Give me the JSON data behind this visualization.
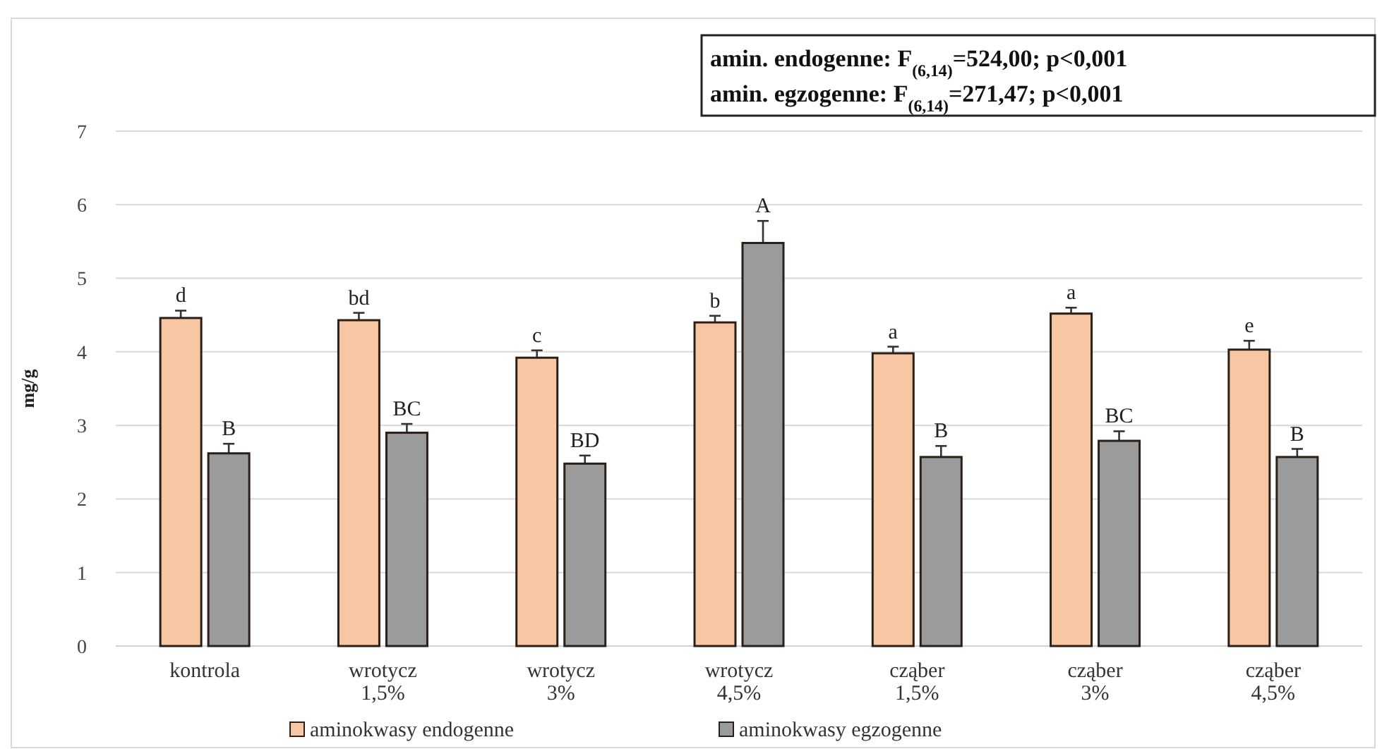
{
  "chart_data": {
    "type": "bar",
    "ylabel": "mg/g",
    "categories": [
      "kontrola",
      "wrotycz 1,5%",
      "wrotycz 3%",
      "wrotycz 4,5%",
      "cząber 1,5%",
      "cząber 3%",
      "cząber 4,5%"
    ],
    "series": [
      {
        "name": "aminokwasy endogenne",
        "color": "#f7c6a3",
        "values": [
          4.46,
          4.43,
          3.92,
          4.4,
          3.98,
          4.52,
          4.03
        ],
        "errors": [
          0.1,
          0.1,
          0.1,
          0.09,
          0.09,
          0.08,
          0.12
        ],
        "value_labels": [
          "d",
          "bd",
          "c",
          "b",
          "a",
          "a",
          "e"
        ]
      },
      {
        "name": "aminokwasy egzogenne",
        "color": "#9b9b9b",
        "values": [
          2.62,
          2.9,
          2.48,
          5.48,
          2.57,
          2.79,
          2.57
        ],
        "errors": [
          0.13,
          0.12,
          0.11,
          0.3,
          0.15,
          0.13,
          0.11
        ],
        "value_labels": [
          "B",
          "BC",
          "BD",
          "A",
          "B",
          "BC",
          "B"
        ]
      }
    ],
    "ylim": [
      0,
      7
    ],
    "yticks": [
      0,
      1,
      2,
      3,
      4,
      5,
      6,
      7
    ],
    "grid": "y",
    "legend": "bottom",
    "annotations": [
      "amin. endogenne: F$_{(6,14)}$=524,00; p<0,001",
      "amin. egzogenne: F$_{(6,14)}$=271,47; p<0,001"
    ]
  }
}
